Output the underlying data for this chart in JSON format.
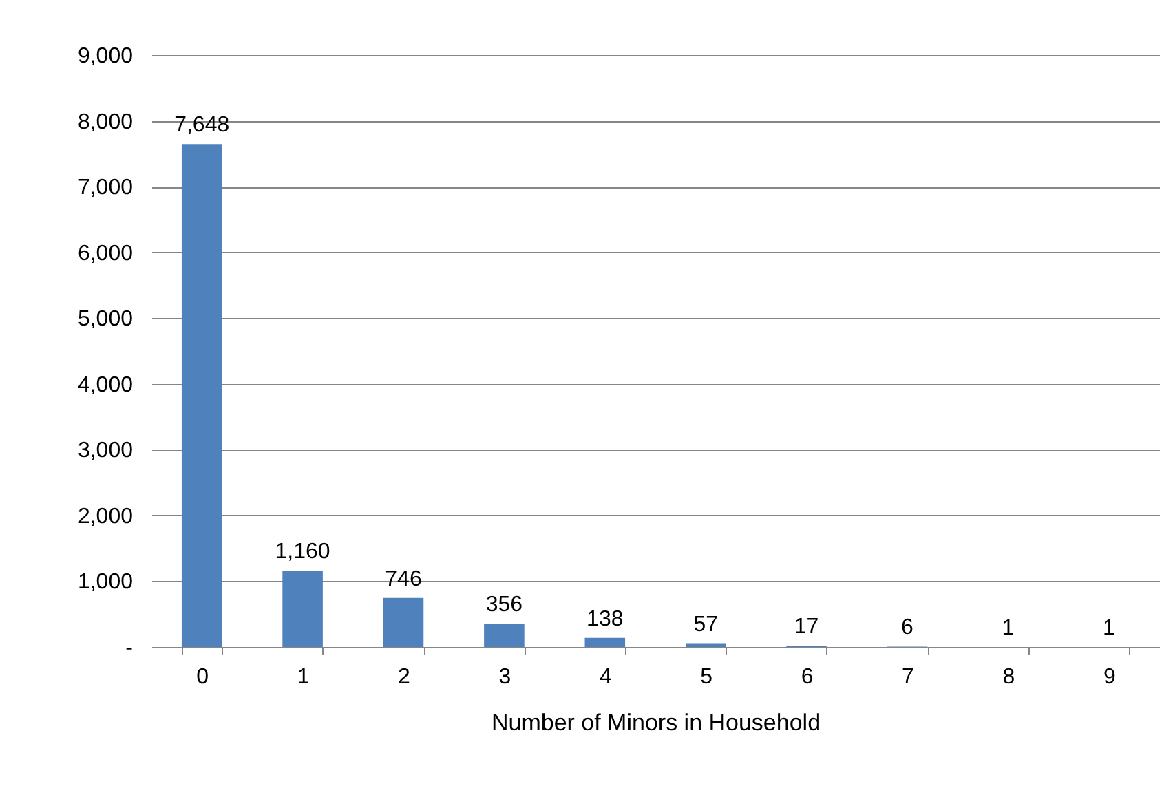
{
  "chart_data": {
    "type": "bar",
    "xlabel": "Number of Minors in Household",
    "categories": [
      "0",
      "1",
      "2",
      "3",
      "4",
      "5",
      "6",
      "7",
      "8",
      "9"
    ],
    "values": [
      7648,
      1160,
      746,
      356,
      138,
      57,
      17,
      6,
      1,
      1
    ],
    "value_labels": [
      "7,648",
      "1,160",
      "746",
      "356",
      "138",
      "57",
      "17",
      "6",
      "1",
      "1"
    ],
    "color": "#4f81bd",
    "ylim": [
      0,
      9000
    ],
    "yticks": [
      {
        "value": 0,
        "label": "-"
      },
      {
        "value": 1000,
        "label": "1,000"
      },
      {
        "value": 2000,
        "label": "2,000"
      },
      {
        "value": 3000,
        "label": "3,000"
      },
      {
        "value": 4000,
        "label": "4,000"
      },
      {
        "value": 5000,
        "label": "5,000"
      },
      {
        "value": 6000,
        "label": "6,000"
      },
      {
        "value": 7000,
        "label": "7,000"
      },
      {
        "value": 8000,
        "label": "8,000"
      },
      {
        "value": 9000,
        "label": "9,000"
      }
    ],
    "grid": "y"
  }
}
